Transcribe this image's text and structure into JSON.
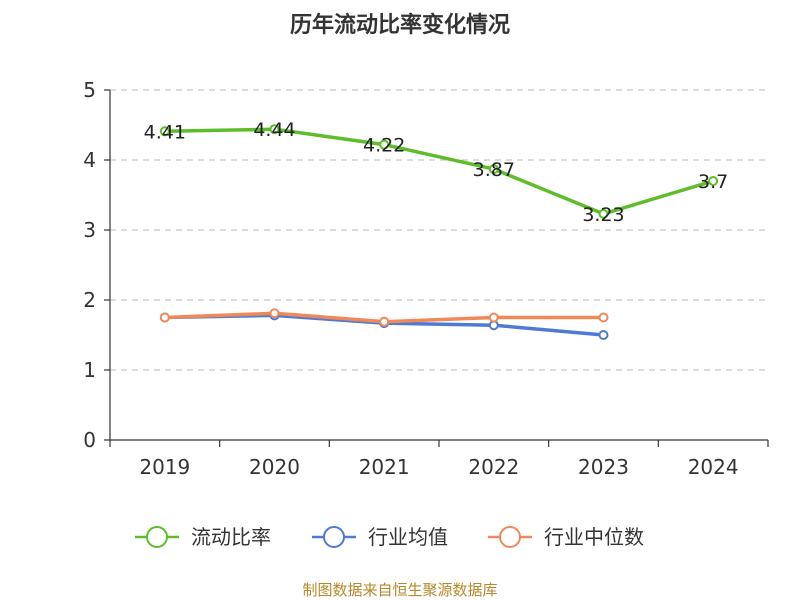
{
  "chart_data": {
    "type": "line",
    "title": "历年流动比率变化情况",
    "categories": [
      "2019",
      "2020",
      "2021",
      "2022",
      "2023",
      "2024"
    ],
    "ylim": [
      0,
      5
    ],
    "yticks": [
      0,
      1,
      2,
      3,
      4,
      5
    ],
    "grid": true,
    "legend_position": "bottom",
    "series": [
      {
        "name": "流动比率",
        "color": "#5dbd2a",
        "values": [
          4.41,
          4.44,
          4.22,
          3.87,
          3.23,
          3.7
        ],
        "labels": [
          "4.41",
          "4.44",
          "4.22",
          "3.87",
          "3.23",
          "3.7"
        ]
      },
      {
        "name": "行业均值",
        "color": "#4e7ad6",
        "values": [
          1.75,
          1.78,
          1.67,
          1.64,
          1.5,
          null
        ]
      },
      {
        "name": "行业中位数",
        "color": "#f0895a",
        "values": [
          1.75,
          1.81,
          1.69,
          1.75,
          1.75,
          null
        ]
      }
    ],
    "source": "制图数据来自恒生聚源数据库"
  }
}
